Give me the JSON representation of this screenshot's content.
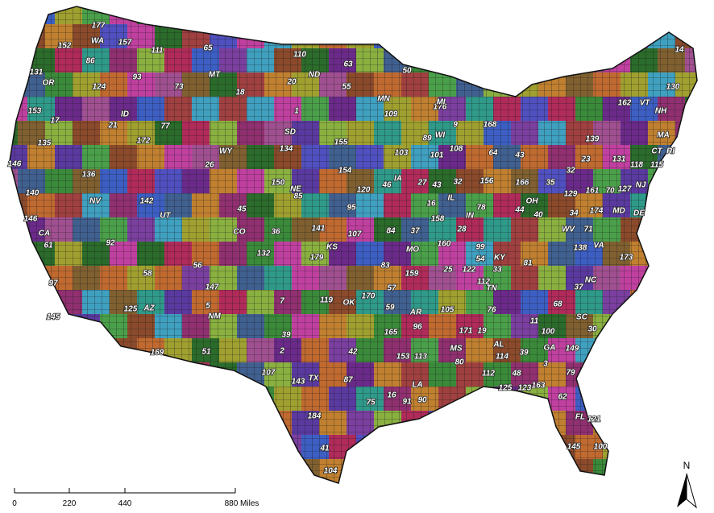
{
  "labels": [
    "177",
    "152",
    "157",
    "111",
    "65",
    "110",
    "63",
    "50",
    "14",
    "86",
    "131",
    "93",
    "124",
    "73",
    "18",
    "20",
    "55",
    "ND",
    "MT",
    "WA",
    "OR",
    "ID",
    "130",
    "153",
    "17",
    "21",
    "77",
    "172",
    "1",
    "109",
    "176",
    "9",
    "MN",
    "MI",
    "162",
    "VT",
    "NH",
    "135",
    "146",
    "134",
    "SD",
    "155",
    "103",
    "WI",
    "108",
    "101",
    "89",
    "168",
    "64",
    "43",
    "139",
    "MA",
    "CT",
    "RI",
    "118",
    "115",
    "131",
    "23",
    "32",
    "136",
    "WY",
    "26",
    "NE",
    "85",
    "150",
    "154",
    "IA",
    "120",
    "46",
    "27",
    "43",
    "32",
    "156",
    "166",
    "35",
    "129",
    "161",
    "70",
    "127",
    "NJ",
    "140",
    "NV",
    "142",
    "UT",
    "45",
    "95",
    "16",
    "IL",
    "IN",
    "78",
    "OH",
    "40",
    "44",
    "174",
    "MD",
    "DE",
    "146",
    "CA",
    "61",
    "CO",
    "36",
    "141",
    "KS",
    "107",
    "84",
    "37",
    "158",
    "28",
    "WV",
    "34",
    "71",
    "92",
    "132",
    "179",
    "MO",
    "160",
    "99",
    "KY",
    "54",
    "VA",
    "138",
    "173",
    "56",
    "58",
    "83",
    "159",
    "25",
    "122",
    "112",
    "33",
    "81",
    "NC",
    "37",
    "97",
    "147",
    "AZ",
    "125",
    "NM",
    "5",
    "7",
    "119",
    "OK",
    "170",
    "57",
    "59",
    "AR",
    "105",
    "TN",
    "171",
    "76",
    "SC",
    "68",
    "145",
    "30",
    "11",
    "100",
    "96",
    "165",
    "GA",
    "149",
    "AL",
    "19",
    "114",
    "39",
    "MS",
    "80",
    "153",
    "113",
    "169",
    "51",
    "39",
    "2",
    "42",
    "TX",
    "143",
    "107",
    "87",
    "112",
    "48",
    "3",
    "79",
    "LA",
    "16",
    "91",
    "90",
    "125",
    "123",
    "163",
    "62",
    "75",
    "FL",
    "121",
    "184",
    "41",
    "104",
    "145",
    "100"
  ],
  "scale": {
    "ticks": [
      "0",
      "220",
      "440",
      "880 Miles"
    ]
  },
  "compass": {
    "label": "N"
  }
}
